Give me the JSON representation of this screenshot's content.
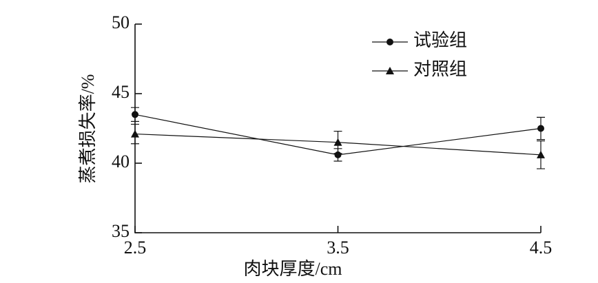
{
  "chart_data": {
    "type": "line",
    "x_label": "肉块厚度/cm",
    "y_label": "蒸煮损失率/%",
    "x": [
      2.5,
      3.5,
      4.5
    ],
    "xlim": [
      2.5,
      4.5
    ],
    "xticks": [
      2.5,
      3.5,
      4.5
    ],
    "ylim": [
      35,
      50
    ],
    "yticks": [
      35,
      40,
      45,
      50
    ],
    "legend": "upper right",
    "series": [
      {
        "name": "试验组",
        "color": "#111111",
        "marker": "circle",
        "values": [
          43.5,
          40.6,
          42.5
        ],
        "errors": [
          0.5,
          0.45,
          0.8
        ]
      },
      {
        "name": "对照组",
        "color": "#111111",
        "marker": "triangle",
        "values": [
          42.1,
          41.5,
          40.6
        ],
        "errors": [
          0.7,
          0.8,
          1.0
        ]
      }
    ]
  }
}
